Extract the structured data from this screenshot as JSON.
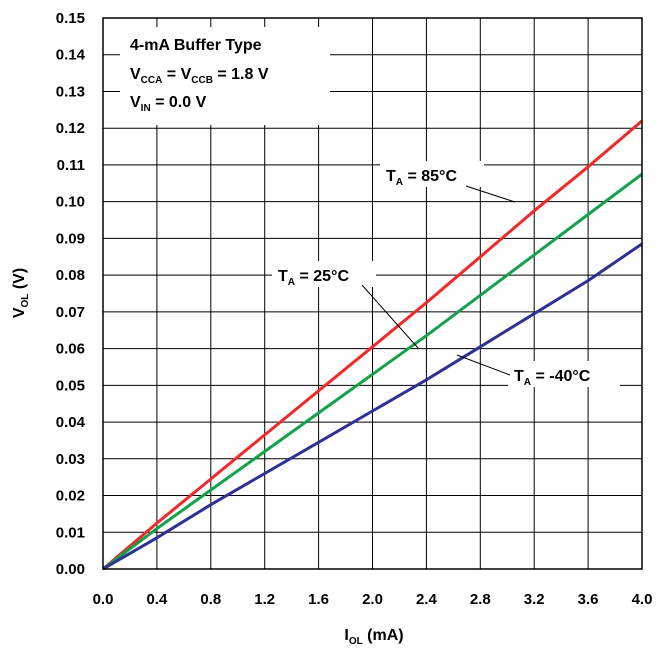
{
  "chart_data": {
    "type": "line",
    "xlabel": {
      "main": "I",
      "sub": "OL",
      "unit": " (mA)"
    },
    "ylabel": {
      "main": "V",
      "sub": "OL",
      "unit": " (V)"
    },
    "xlim": [
      0,
      4.0
    ],
    "ylim": [
      0,
      0.15
    ],
    "x_ticks": [
      "0.0",
      "0.4",
      "0.8",
      "1.2",
      "1.6",
      "2.0",
      "2.4",
      "2.8",
      "3.2",
      "3.6",
      "4.0"
    ],
    "y_ticks": [
      "0.00",
      "0.01",
      "0.02",
      "0.03",
      "0.04",
      "0.05",
      "0.06",
      "0.07",
      "0.08",
      "0.09",
      "0.10",
      "0.11",
      "0.12",
      "0.13",
      "0.14",
      "0.15"
    ],
    "grid": true,
    "legend_box": {
      "line1": "4-mA Buffer Type",
      "line2": {
        "a": "V",
        "a_sub": "CCA",
        "mid": " = V",
        "b_sub": "CCB",
        "rest": " = 1.8 V"
      },
      "line3": {
        "a": "V",
        "a_sub": "IN",
        "rest": " = 0.0 V"
      }
    },
    "series": [
      {
        "name": "T_A = 85°C",
        "label": {
          "main": "T",
          "sub": "A",
          "rest": " = 85°C"
        },
        "color": "#ee2a2a",
        "x": [
          0,
          0.4,
          0.8,
          1.2,
          1.6,
          2.0,
          2.4,
          2.8,
          3.2,
          3.6,
          4.0
        ],
        "y": [
          0,
          0.0125,
          0.0245,
          0.0365,
          0.0485,
          0.0605,
          0.0725,
          0.085,
          0.0975,
          0.1095,
          0.122
        ]
      },
      {
        "name": "T_A = 25°C",
        "label": {
          "main": "T",
          "sub": "A",
          "rest": " = 25°C"
        },
        "color": "#12a24a",
        "x": [
          0,
          0.4,
          0.8,
          1.2,
          1.6,
          2.0,
          2.4,
          2.8,
          3.2,
          3.6,
          4.0
        ],
        "y": [
          0,
          0.011,
          0.0215,
          0.032,
          0.0425,
          0.053,
          0.0635,
          0.0745,
          0.0855,
          0.0965,
          0.1075
        ]
      },
      {
        "name": "T_A = -40°C",
        "label": {
          "main": "T",
          "sub": "A",
          "rest": " = -40°C"
        },
        "color": "#2e3192",
        "x": [
          0,
          0.4,
          0.8,
          1.2,
          1.6,
          2.0,
          2.4,
          2.8,
          3.2,
          3.6,
          4.0
        ],
        "y": [
          0,
          0.0085,
          0.0175,
          0.026,
          0.0345,
          0.043,
          0.0515,
          0.0605,
          0.0695,
          0.0785,
          0.0885
        ]
      }
    ]
  }
}
